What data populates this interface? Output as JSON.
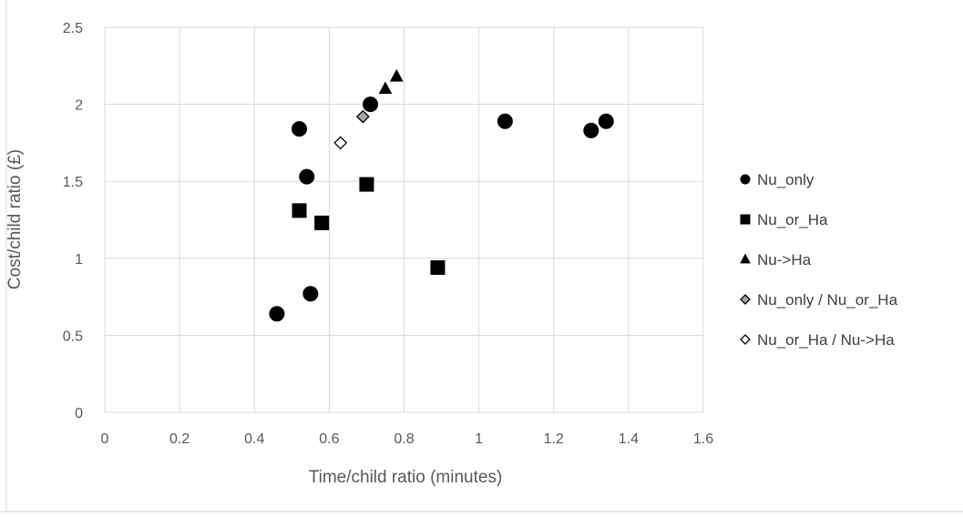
{
  "chart_data": {
    "type": "scatter",
    "title": "",
    "xlabel": "Time/child ratio (minutes)",
    "ylabel": "Cost/child ratio (£)",
    "xlim": [
      0,
      1.6
    ],
    "ylim": [
      0,
      2.5
    ],
    "x_ticks": [
      "0",
      "0.2",
      "0.4",
      "0.6",
      "0.8",
      "1",
      "1.2",
      "1.4",
      "1.6"
    ],
    "y_ticks": [
      "0",
      "0.5",
      "1",
      "1.5",
      "2",
      "2.5"
    ],
    "grid": true,
    "legend_position": "right",
    "series": [
      {
        "name": "Nu_only",
        "marker": "circle",
        "color": "#000000",
        "points": [
          {
            "x": 0.46,
            "y": 0.64
          },
          {
            "x": 0.52,
            "y": 1.84
          },
          {
            "x": 0.54,
            "y": 1.53
          },
          {
            "x": 0.55,
            "y": 0.77
          },
          {
            "x": 0.71,
            "y": 2.0
          },
          {
            "x": 1.07,
            "y": 1.89
          },
          {
            "x": 1.3,
            "y": 1.83
          },
          {
            "x": 1.34,
            "y": 1.89
          }
        ]
      },
      {
        "name": "Nu_or_Ha",
        "marker": "square",
        "color": "#000000",
        "points": [
          {
            "x": 0.52,
            "y": 1.31
          },
          {
            "x": 0.58,
            "y": 1.23
          },
          {
            "x": 0.7,
            "y": 1.48
          },
          {
            "x": 0.89,
            "y": 0.94
          }
        ]
      },
      {
        "name": "Nu->Ha",
        "marker": "triangle",
        "color": "#000000",
        "points": [
          {
            "x": 0.75,
            "y": 2.1
          },
          {
            "x": 0.78,
            "y": 2.18
          }
        ]
      },
      {
        "name": "Nu_only / Nu_or_Ha",
        "marker": "diamond",
        "color": "#a6a6a6",
        "points": [
          {
            "x": 0.69,
            "y": 1.92
          }
        ]
      },
      {
        "name": "Nu_or_Ha / Nu->Ha",
        "marker": "diamond",
        "color": "#ffffff",
        "points": [
          {
            "x": 0.63,
            "y": 1.75
          }
        ]
      }
    ]
  }
}
